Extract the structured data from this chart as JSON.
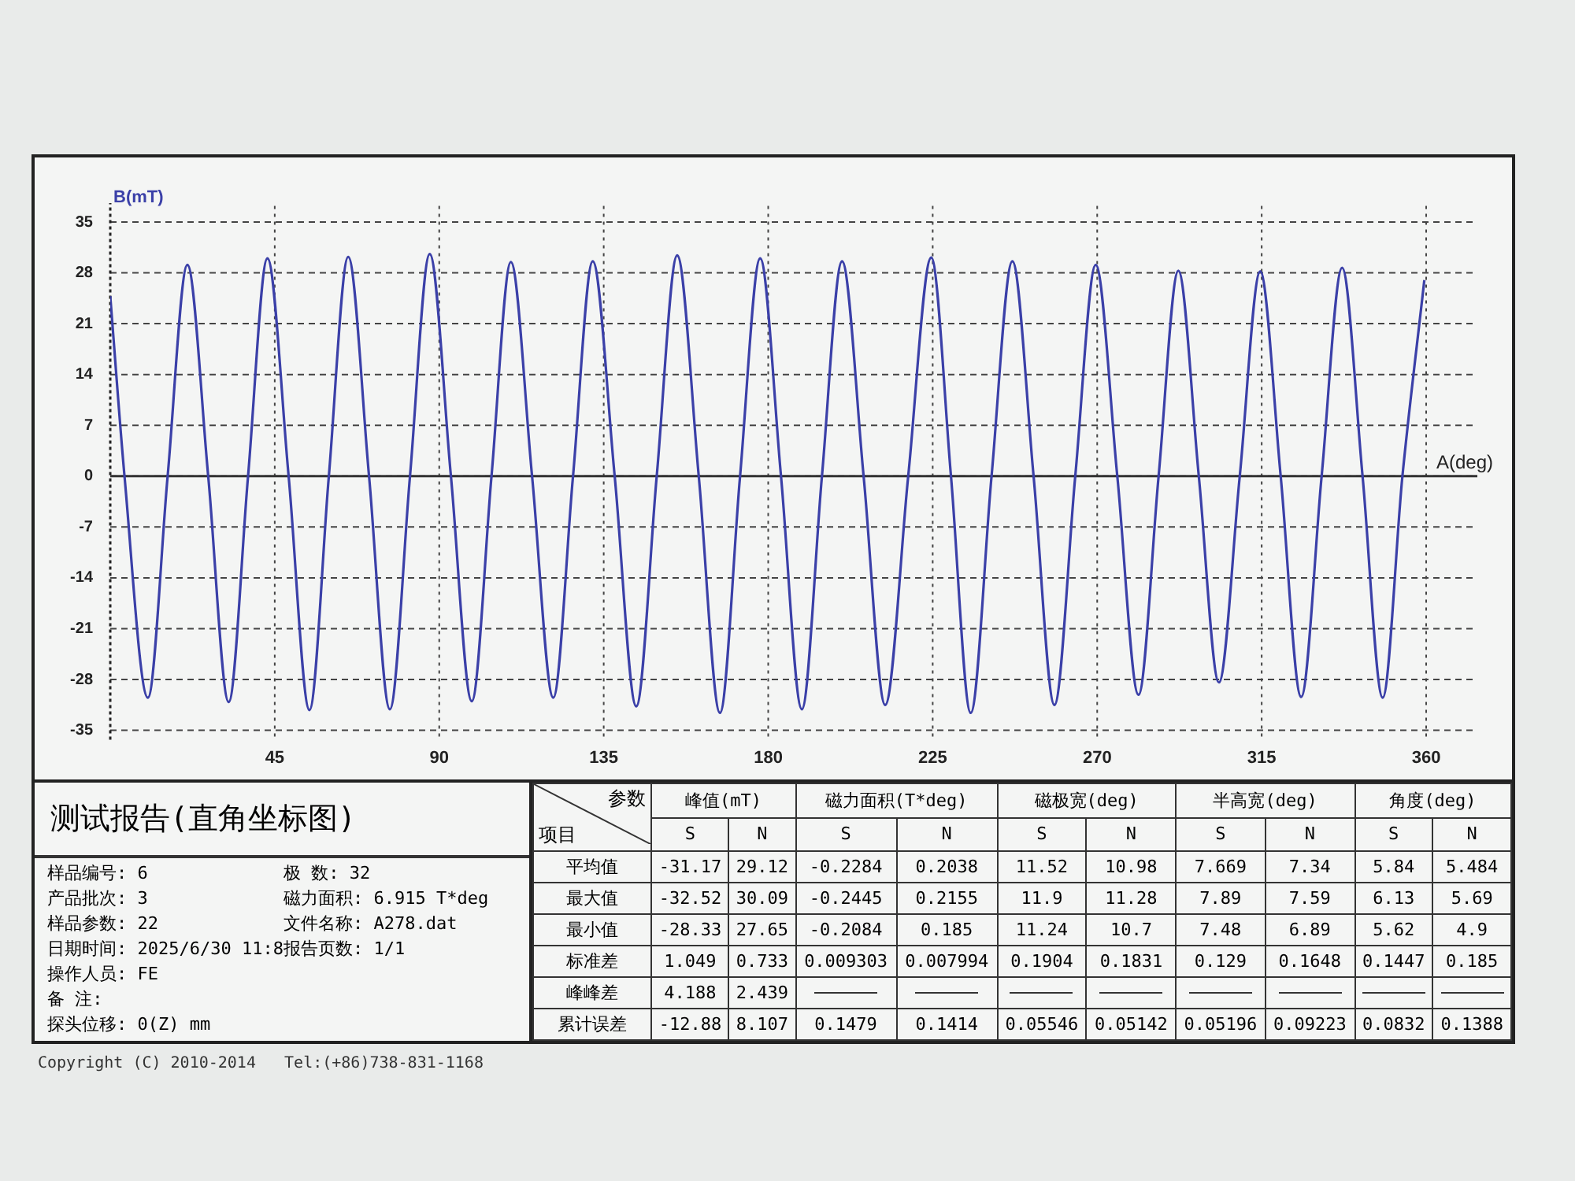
{
  "chart_data": {
    "type": "line",
    "title": "测试报告(直角坐标图)",
    "xlabel": "A(deg)",
    "ylabel": "B(mT)",
    "x": [
      0,
      3.9,
      10.3,
      15.7,
      21.1,
      26.8,
      32.4,
      37.7,
      43.0,
      48.8,
      54.5,
      59.8,
      65.1,
      70.8,
      76.5,
      82.0,
      87.4,
      93.2,
      98.9,
      104.3,
      109.6,
      115.4,
      121.2,
      126.6,
      132.0,
      138.0,
      143.9,
      149.5,
      155.1,
      161.0,
      166.8,
      172.3,
      177.8,
      183.5,
      189.2,
      194.7,
      200.2,
      206.1,
      212.0,
      218.3,
      224.6,
      230.0,
      235.4,
      241.1,
      246.8,
      252.6,
      258.3,
      264.0,
      269.6,
      275.5,
      281.3,
      286.8,
      292.2,
      297.8,
      303.3,
      309.0,
      314.6,
      320.2,
      325.8,
      331.4,
      337.0,
      342.6,
      348.1,
      353.5,
      359.5
    ],
    "series": [
      {
        "color": "#3b40a8",
        "values": [
          24.8,
          0,
          -30.5,
          0,
          29.1,
          0,
          -31.1,
          0,
          30.0,
          0,
          -32.2,
          0,
          30.2,
          0,
          -32.1,
          0,
          30.6,
          0,
          -31.0,
          0,
          29.5,
          0,
          -30.5,
          0,
          29.6,
          0,
          -31.7,
          0,
          30.4,
          0,
          -32.6,
          0,
          30.0,
          0,
          -32.1,
          0,
          29.6,
          0,
          -31.5,
          0,
          30.1,
          0,
          -32.6,
          0,
          29.6,
          0,
          -31.5,
          0,
          29.1,
          0,
          -30.1,
          0,
          28.3,
          0,
          -28.4,
          0,
          28.2,
          0,
          -30.4,
          0,
          28.7,
          0,
          -30.5,
          0,
          27
        ]
      }
    ],
    "xlim": [
      0,
      374
    ],
    "ylim": [
      -35,
      35
    ],
    "xticks": [
      45,
      90,
      135,
      180,
      225,
      270,
      315,
      360
    ],
    "yticks": [
      -35,
      -28,
      -21,
      -14,
      -7,
      0,
      7,
      14,
      21,
      28,
      35
    ],
    "grid": true,
    "annotations": [
      "样品编号: 6",
      "产品批次: 3",
      "样品参数: 22",
      "日期时间: 2025/6/30 11:8",
      "操作人员: FE",
      "备 注:",
      "探头位移: 0(Z) mm",
      "极 数: 32",
      "磁力面积: 6.915 T*deg",
      "文件名称: A278.dat",
      "报告页数: 1/1",
      "参数\t峰值(mT)\t磁力面积(T*deg)\t磁极宽(deg)\t半高宽(deg)\t角度(deg)",
      "项目\tS\tN\tS\tN\tS\tN\tS\tN\tS\tN",
      "平均值\t-31.17\t29.12\t-0.2284\t0.2038\t11.52\t10.98\t7.669\t7.34\t5.84\t5.484",
      "最大值\t-32.52\t30.09\t-0.2445\t0.2155\t11.9\t11.28\t7.89\t7.59\t6.13\t5.69",
      "最小值\t-28.33\t27.65\t-0.2084\t0.185\t11.24\t10.7\t7.48\t6.89\t5.62\t4.9",
      "标准差\t1.049\t0.733\t0.009303\t0.007994\t0.1904\t0.1831\t0.129\t0.1648\t0.1447\t0.185",
      "峰峰差\t4.188\t2.439",
      "累计误差\t-12.88\t8.107\t0.1479\t0.1414\t0.05546\t0.05142\t0.05196\t0.09223\t0.0832\t0.1388",
      "Copyright (C) 2010-2014   Tel:(+86)738-831-1168"
    ]
  }
}
